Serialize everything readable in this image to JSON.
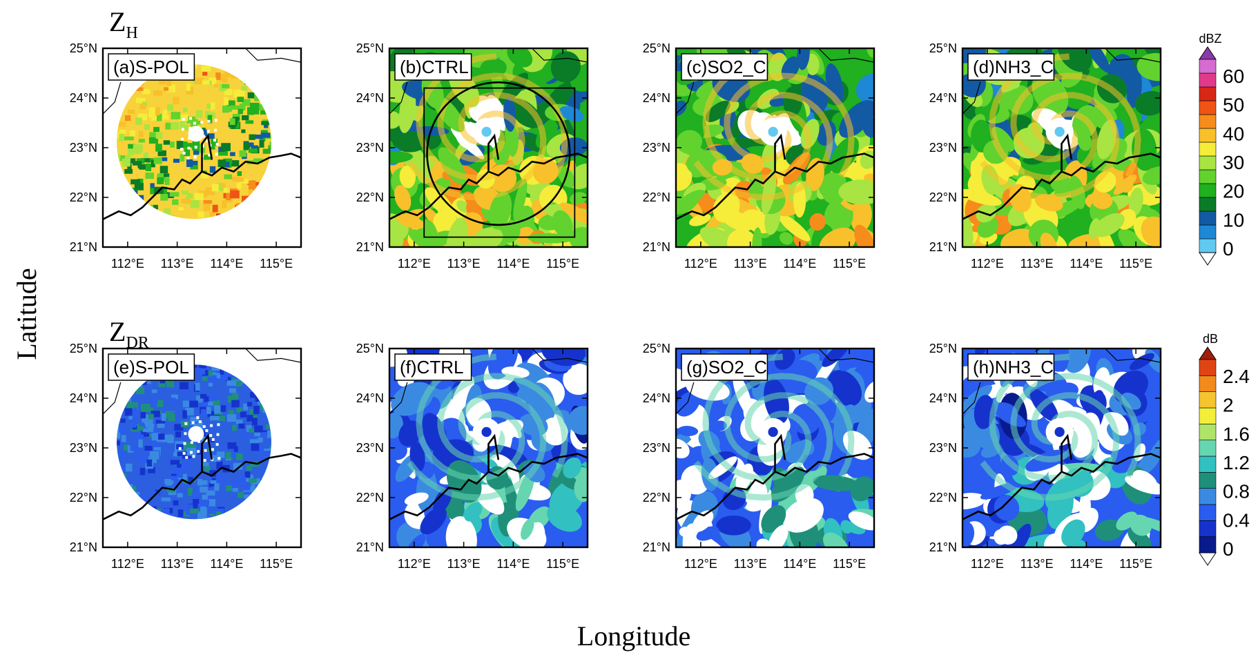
{
  "figure": {
    "row_titles": [
      {
        "main": "Z",
        "sub": "H"
      },
      {
        "main": "Z",
        "sub": "DR"
      }
    ],
    "ylabel": "Latitude",
    "xlabel": "Longitude",
    "lat_ticks": [
      "25°N",
      "24°N",
      "23°N",
      "22°N",
      "21°N"
    ],
    "lon_ticks": [
      "112°E",
      "113°E",
      "114°E",
      "115°E"
    ],
    "panels": [
      {
        "label": "(a)S-POL",
        "kind": "radar",
        "var": "zh"
      },
      {
        "label": "(b)CTRL",
        "kind": "model",
        "var": "zh",
        "seed": 11,
        "box": true
      },
      {
        "label": "(c)SO2_C",
        "kind": "model",
        "var": "zh",
        "seed": 23
      },
      {
        "label": "(d)NH3_C",
        "kind": "model",
        "var": "zh",
        "seed": 37
      },
      {
        "label": "(e)S-POL",
        "kind": "radar",
        "var": "zdr"
      },
      {
        "label": "(f)CTRL",
        "kind": "model",
        "var": "zdr",
        "seed": 51
      },
      {
        "label": "(g)SO2_C",
        "kind": "model",
        "var": "zdr",
        "seed": 63
      },
      {
        "label": "(h)NH3_C",
        "kind": "model",
        "var": "zdr",
        "seed": 79
      }
    ],
    "colorbars": [
      {
        "unit": "dBZ",
        "ticks": [
          "60",
          "50",
          "40",
          "30",
          "20",
          "10",
          "0"
        ],
        "colors": [
          "#62c9f0",
          "#1d88d6",
          "#135aa4",
          "#0a7c28",
          "#20b020",
          "#62d22e",
          "#a8e442",
          "#f6ec3a",
          "#f8c02a",
          "#f68c1c",
          "#ef5416",
          "#d62814",
          "#e23a8a",
          "#d66bd0"
        ],
        "top_color": "#8c3aa8"
      },
      {
        "unit": "dB",
        "ticks": [
          "2.4",
          "2",
          "1.6",
          "1.2",
          "0.8",
          "0.4",
          "0"
        ],
        "colors": [
          "#091b8c",
          "#1533cc",
          "#2a5cf0",
          "#3b8ae2",
          "#1f8f7a",
          "#32c0c0",
          "#66d6b0",
          "#aee468",
          "#f2ee3a",
          "#f6c42e",
          "#f28a1c",
          "#e04414"
        ],
        "top_color": "#a01e0a"
      }
    ]
  }
}
